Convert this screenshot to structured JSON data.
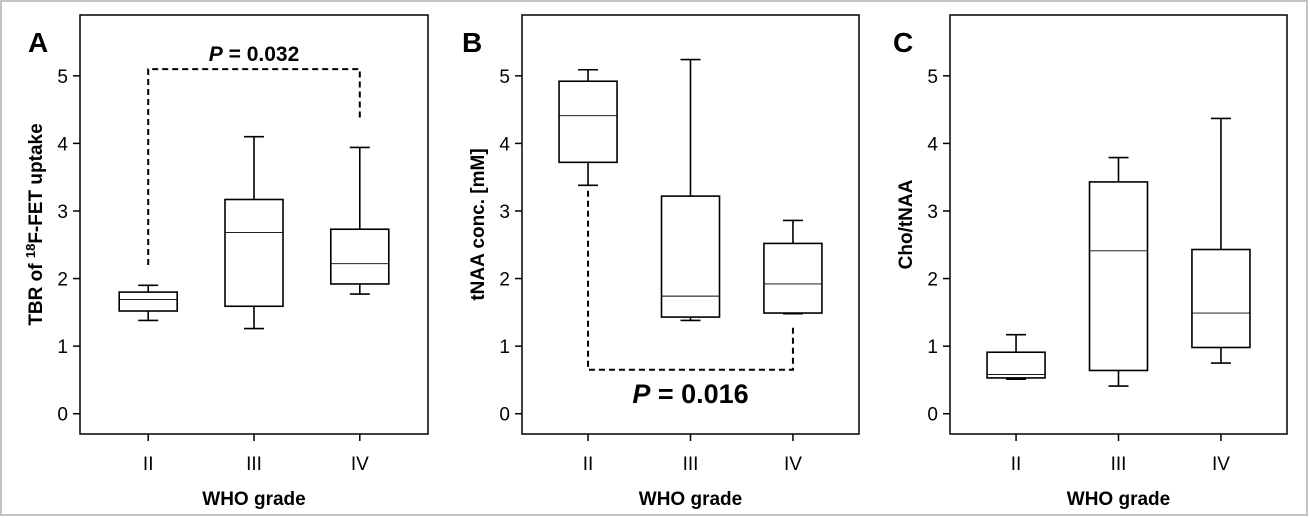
{
  "chart_data": [
    {
      "type": "box",
      "panel_label": "A",
      "title": "",
      "xlabel": "WHO grade",
      "ylabel_parts": {
        "prefix": "TBR of ",
        "superscript": "18",
        "suffix": "F-FET uptake"
      },
      "ylim": [
        -0.3,
        5.9
      ],
      "yticks": [
        0,
        1,
        2,
        3,
        4,
        5
      ],
      "categories": [
        "II",
        "III",
        "IV"
      ],
      "boxes": [
        {
          "category": "II",
          "whisker_low": 1.38,
          "q1": 1.52,
          "median": 1.69,
          "q3": 1.8,
          "whisker_high": 1.9
        },
        {
          "category": "III",
          "whisker_low": 1.26,
          "q1": 1.59,
          "median": 2.68,
          "q3": 3.17,
          "whisker_high": 4.1
        },
        {
          "category": "IV",
          "whisker_low": 1.77,
          "q1": 1.92,
          "median": 2.22,
          "q3": 2.73,
          "whisker_high": 3.94
        }
      ],
      "significance": {
        "from": "II",
        "to": "IV",
        "y": 5.1,
        "drop_from": 2.2,
        "drop_to": 4.35,
        "label_italic": "P",
        "label_rest": " = 0.032",
        "label_position": "above"
      }
    },
    {
      "type": "box",
      "panel_label": "B",
      "title": "",
      "xlabel": "WHO grade",
      "ylabel_parts": {
        "prefix": "tNAA conc. [mM]",
        "superscript": "",
        "suffix": ""
      },
      "ylim": [
        -0.3,
        5.9
      ],
      "yticks": [
        0,
        1,
        2,
        3,
        4,
        5
      ],
      "categories": [
        "II",
        "III",
        "IV"
      ],
      "boxes": [
        {
          "category": "II",
          "whisker_low": 3.38,
          "q1": 3.72,
          "median": 4.41,
          "q3": 4.92,
          "whisker_high": 5.09
        },
        {
          "category": "III",
          "whisker_low": 1.38,
          "q1": 1.43,
          "median": 1.74,
          "q3": 3.22,
          "whisker_high": 5.24
        },
        {
          "category": "IV",
          "whisker_low": 1.48,
          "q1": 1.49,
          "median": 1.92,
          "q3": 2.52,
          "whisker_high": 2.86
        }
      ],
      "significance": {
        "from": "II",
        "to": "IV",
        "y": 0.65,
        "drop_from": 3.3,
        "drop_to": 1.3,
        "label_italic": "P",
        "label_rest": " = 0.016",
        "label_position": "below"
      }
    },
    {
      "type": "box",
      "panel_label": "C",
      "title": "",
      "xlabel": "WHO grade",
      "ylabel_parts": {
        "prefix": "Cho/tNAA",
        "superscript": "",
        "suffix": ""
      },
      "ylim": [
        -0.3,
        5.9
      ],
      "yticks": [
        0,
        1,
        2,
        3,
        4,
        5
      ],
      "categories": [
        "II",
        "III",
        "IV"
      ],
      "boxes": [
        {
          "category": "II",
          "whisker_low": 0.51,
          "q1": 0.53,
          "median": 0.58,
          "q3": 0.91,
          "whisker_high": 1.17
        },
        {
          "category": "III",
          "whisker_low": 0.41,
          "q1": 0.64,
          "median": 2.41,
          "q3": 3.43,
          "whisker_high": 3.79
        },
        {
          "category": "IV",
          "whisker_low": 0.75,
          "q1": 0.98,
          "median": 1.49,
          "q3": 2.43,
          "whisker_high": 4.37
        }
      ],
      "significance": null
    }
  ]
}
